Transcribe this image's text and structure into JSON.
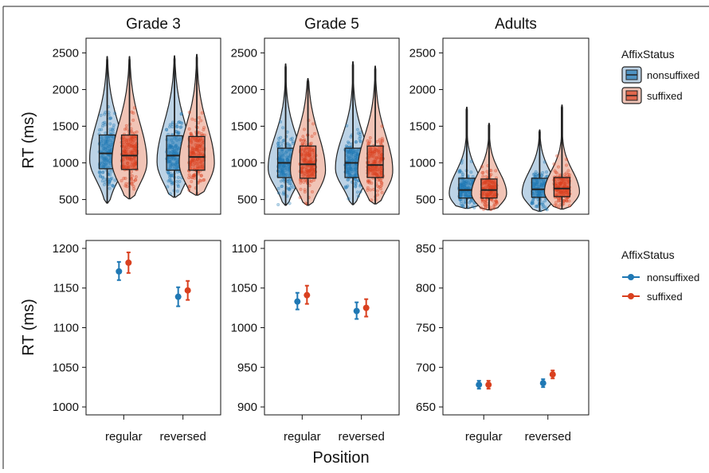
{
  "colors": {
    "nonsuffixed": "#1f78b4",
    "suffixed": "#d9401f",
    "nonsuffixed_light": "#bcd3e6",
    "suffixed_light": "#f1c4b6"
  },
  "axis": {
    "ylabel": "RT (ms)",
    "xlabel": "Position",
    "x_ticks": [
      "regular",
      "reversed"
    ]
  },
  "legend": {
    "title": "AffixStatus",
    "labels": [
      "nonsuffixed",
      "suffixed"
    ]
  },
  "panel_titles": [
    "Grade 3",
    "Grade 5",
    "Adults"
  ],
  "chart_data": [
    {
      "type": "violin",
      "row": "top",
      "facets": [
        "Grade 3",
        "Grade 5",
        "Adults"
      ],
      "ylim": [
        300,
        2700
      ],
      "yticks": [
        500,
        1000,
        1500,
        2000,
        2500
      ],
      "categories": [
        "regular",
        "reversed"
      ],
      "series": [
        {
          "name": "nonsuffixed",
          "groups": [
            [
              {
                "min": 450,
                "q1": 920,
                "median": 1130,
                "q3": 1380,
                "max": 2450
              },
              {
                "min": 530,
                "q1": 900,
                "median": 1100,
                "q3": 1370,
                "max": 2460
              }
            ],
            [
              {
                "min": 420,
                "q1": 800,
                "median": 1000,
                "q3": 1200,
                "max": 2350
              },
              {
                "min": 430,
                "q1": 800,
                "median": 1000,
                "q3": 1200,
                "max": 2380
              }
            ],
            [
              {
                "min": 380,
                "q1": 520,
                "median": 630,
                "q3": 790,
                "max": 1760
              },
              {
                "min": 340,
                "q1": 530,
                "median": 640,
                "q3": 790,
                "max": 1450
              }
            ]
          ]
        },
        {
          "name": "suffixed",
          "groups": [
            [
              {
                "min": 510,
                "q1": 910,
                "median": 1100,
                "q3": 1380,
                "max": 2450
              },
              {
                "min": 560,
                "q1": 900,
                "median": 1080,
                "q3": 1360,
                "max": 2480
              }
            ],
            [
              {
                "min": 420,
                "q1": 790,
                "median": 980,
                "q3": 1230,
                "max": 2150
              },
              {
                "min": 440,
                "q1": 800,
                "median": 970,
                "q3": 1230,
                "max": 2320
              }
            ],
            [
              {
                "min": 360,
                "q1": 520,
                "median": 630,
                "q3": 780,
                "max": 1540
              },
              {
                "min": 370,
                "q1": 540,
                "median": 650,
                "q3": 800,
                "max": 1790
              }
            ]
          ]
        }
      ]
    },
    {
      "type": "point-errorbar",
      "row": "bottom",
      "facets": [
        {
          "name": "Grade 3",
          "ylim": [
            990,
            1210
          ],
          "yticks": [
            1000,
            1050,
            1100,
            1150,
            1200
          ]
        },
        {
          "name": "Grade 5",
          "ylim": [
            890,
            1110
          ],
          "yticks": [
            900,
            950,
            1000,
            1050,
            1100
          ]
        },
        {
          "name": "Adults",
          "ylim": [
            640,
            860
          ],
          "yticks": [
            650,
            700,
            750,
            800,
            850
          ]
        }
      ],
      "categories": [
        "regular",
        "reversed"
      ],
      "series": [
        {
          "name": "nonsuffixed",
          "values": [
            [
              [
                1171,
                1160,
                1183
              ],
              [
                1139,
                1127,
                1151
              ]
            ],
            [
              [
                1033,
                1023,
                1044
              ],
              [
                1021,
                1011,
                1032
              ]
            ],
            [
              [
                678,
                673,
                683
              ],
              [
                680,
                675,
                685
              ]
            ]
          ]
        },
        {
          "name": "suffixed",
          "values": [
            [
              [
                1182,
                1169,
                1195
              ],
              [
                1147,
                1135,
                1159
              ]
            ],
            [
              [
                1041,
                1030,
                1053
              ],
              [
                1025,
                1014,
                1036
              ]
            ],
            [
              [
                678,
                673,
                683
              ],
              [
                691,
                686,
                696
              ]
            ]
          ]
        }
      ]
    }
  ]
}
